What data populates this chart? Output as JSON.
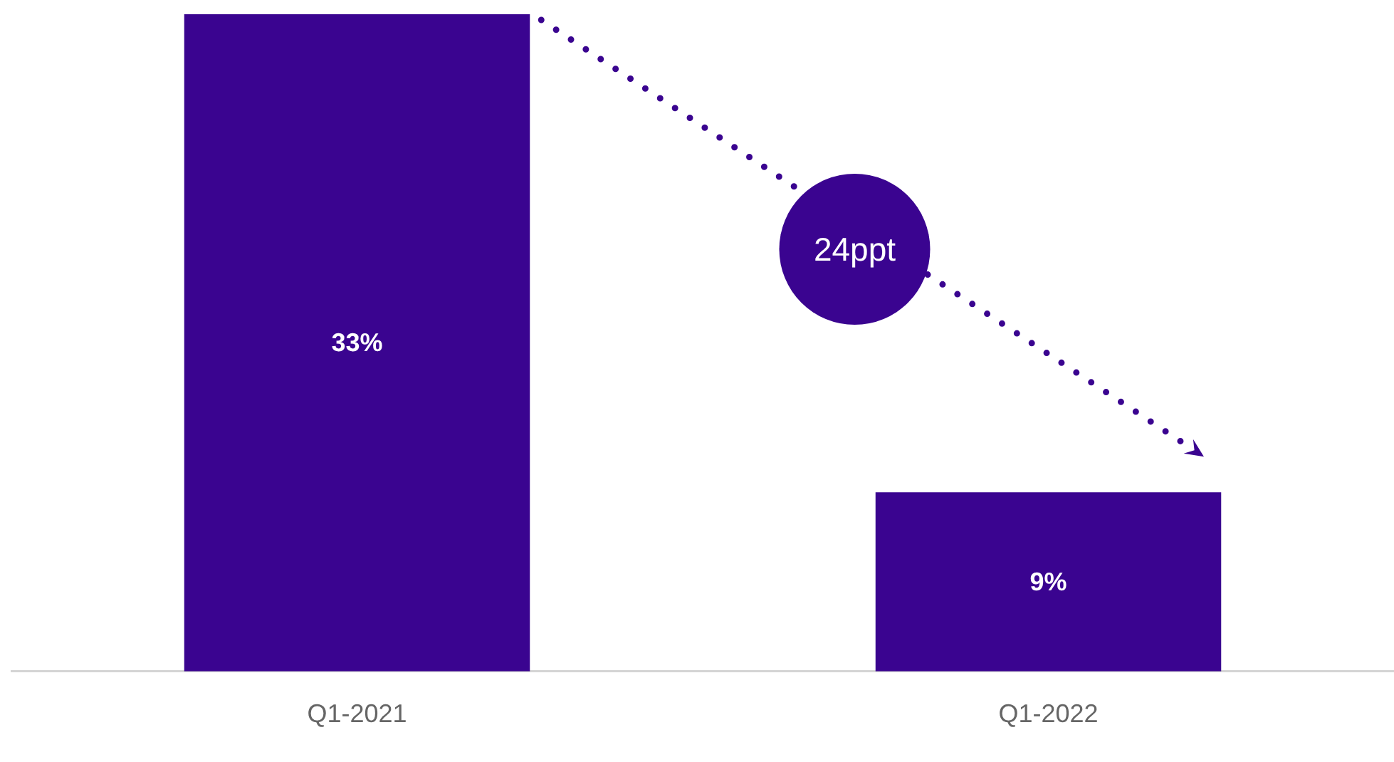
{
  "chart_data": {
    "type": "bar",
    "categories": [
      "Q1-2021",
      "Q1-2022"
    ],
    "values": [
      33,
      9
    ],
    "color": "#3a0490",
    "value_labels": [
      "33%",
      "9%"
    ],
    "annotations": [
      "24ppt"
    ]
  }
}
